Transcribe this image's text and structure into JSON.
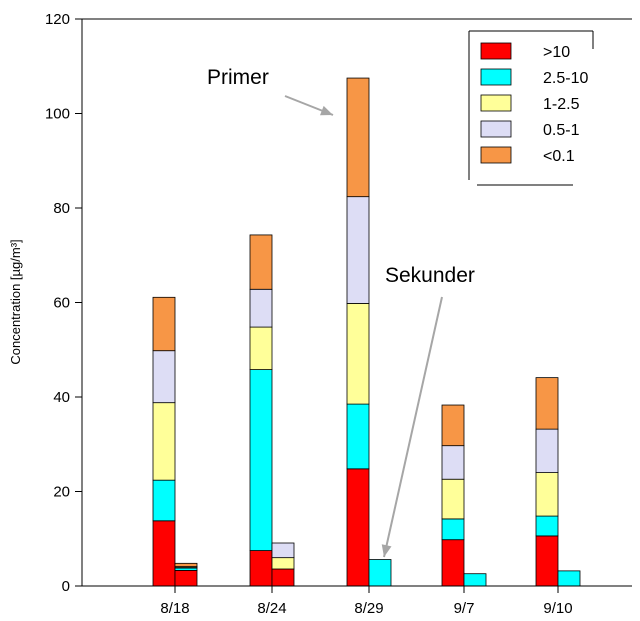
{
  "chart_data": {
    "type": "bar",
    "stacked": true,
    "ylabel": "Concentration [µg/m³]",
    "ylim": [
      0,
      120
    ],
    "yticks": [
      0,
      20,
      40,
      60,
      80,
      100,
      120
    ],
    "categories": [
      "8/18",
      "8/24",
      "8/29",
      "9/7",
      "9/10"
    ],
    "legend_position": "top-right",
    "series": [
      {
        "name": ">10",
        "color": "#ff0000"
      },
      {
        "name": "2.5-10",
        "color": "#00ffff"
      },
      {
        "name": "1-2.5",
        "color": "#ffff99"
      },
      {
        "name": "0.5-1",
        "color": "#ddddf5"
      },
      {
        "name": "<0.1",
        "color": "#f79646"
      }
    ],
    "bars": [
      {
        "category": "8/18",
        "group": "Primer",
        "values": [
          13.8,
          8.6,
          16.4,
          11.0,
          11.3
        ]
      },
      {
        "category": "8/18",
        "group": "Sekunder",
        "values": [
          3.3,
          0.5,
          0.2,
          0.1,
          0.7
        ]
      },
      {
        "category": "8/24",
        "group": "Primer",
        "values": [
          7.5,
          38.3,
          9.0,
          8.0,
          11.5
        ]
      },
      {
        "category": "8/24",
        "group": "Sekunder",
        "values": [
          3.6,
          0.0,
          2.4,
          3.1,
          0.0
        ]
      },
      {
        "category": "8/29",
        "group": "Primer",
        "values": [
          24.8,
          13.7,
          21.3,
          22.6,
          25.1
        ]
      },
      {
        "category": "8/29",
        "group": "Sekunder",
        "values": [
          0.0,
          5.6,
          0.0,
          0.0,
          0.0
        ]
      },
      {
        "category": "9/7",
        "group": "Primer",
        "values": [
          9.8,
          4.4,
          8.4,
          7.1,
          8.6
        ]
      },
      {
        "category": "9/7",
        "group": "Sekunder",
        "values": [
          0.0,
          2.6,
          0.0,
          0.0,
          0.0
        ]
      },
      {
        "category": "9/10",
        "group": "Primer",
        "values": [
          10.6,
          4.2,
          9.2,
          9.2,
          10.9
        ]
      },
      {
        "category": "9/10",
        "group": "Sekunder",
        "values": [
          0.0,
          3.2,
          0.0,
          0.0,
          0.0
        ]
      }
    ],
    "annotations": [
      {
        "text": "Primer",
        "points_to": "8/29 Primer bar"
      },
      {
        "text": "Sekunder",
        "points_to": "8/29 Sekunder bar"
      }
    ]
  }
}
